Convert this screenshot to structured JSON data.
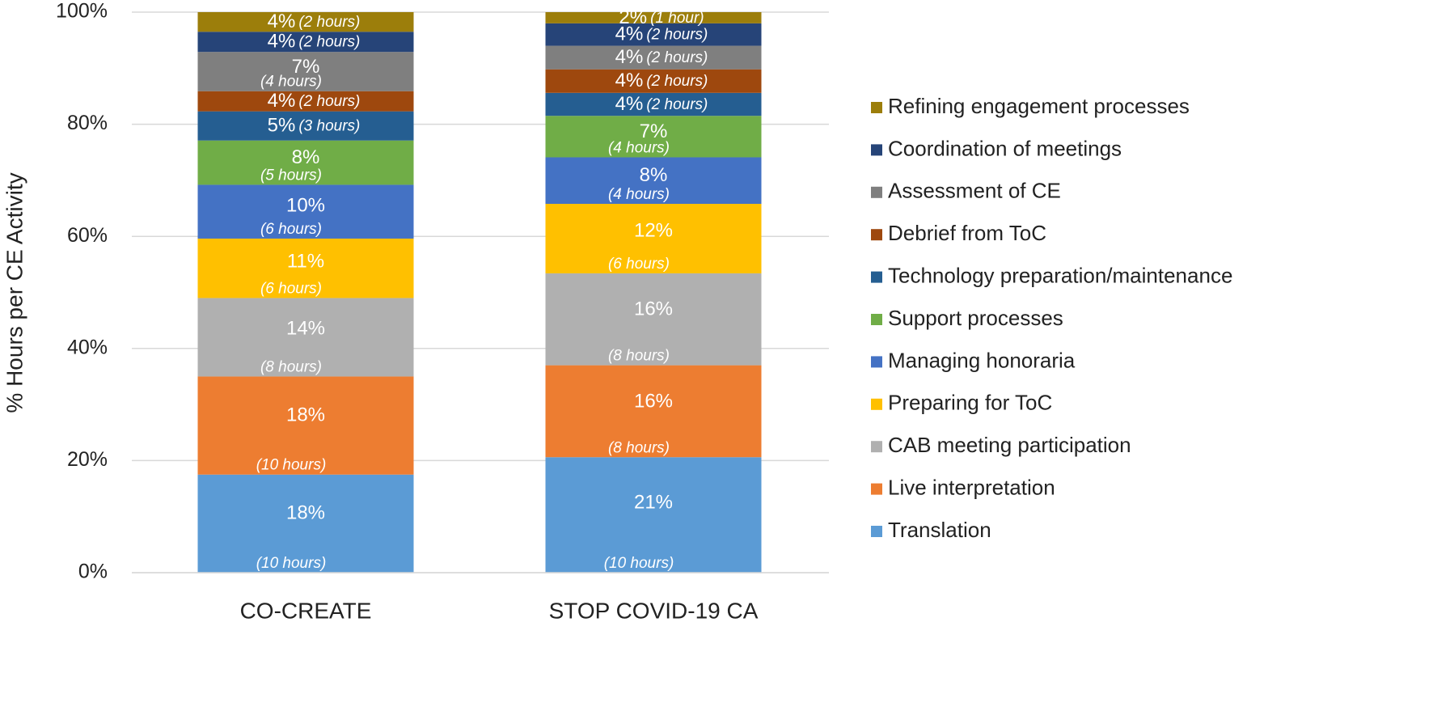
{
  "chart_data": {
    "type": "stacked_bar",
    "y_label": "% Hours per CE Activity",
    "categories": [
      "CO-CREATE",
      "STOP COVID-19 CA"
    ],
    "ylim": [
      0,
      100
    ],
    "yticks": [
      {
        "value": 0,
        "label": "0%"
      },
      {
        "value": 20,
        "label": "20%"
      },
      {
        "value": 40,
        "label": "40%"
      },
      {
        "value": 60,
        "label": "60%"
      },
      {
        "value": 80,
        "label": "80%"
      },
      {
        "value": 100,
        "label": "100%"
      }
    ],
    "grid": true,
    "legend_position": "right",
    "series": [
      {
        "name": "Translation",
        "color": "#5b9bd5",
        "values": [
          17.5,
          20.6
        ],
        "value_labels": [
          "18%",
          "21%"
        ],
        "hour_labels": [
          "(10 hours)",
          "(10 hours)"
        ]
      },
      {
        "name": "Live interpretation",
        "color": "#ed7d31",
        "values": [
          17.5,
          16.4
        ],
        "value_labels": [
          "18%",
          "16%"
        ],
        "hour_labels": [
          "(10 hours)",
          "(8 hours)"
        ]
      },
      {
        "name": "CAB meeting participation",
        "color": "#b0b0b0",
        "values": [
          14.0,
          16.4
        ],
        "value_labels": [
          "14%",
          "16%"
        ],
        "hour_labels": [
          "(8 hours)",
          "(8 hours)"
        ]
      },
      {
        "name": "Preparing for ToC",
        "color": "#ffc000",
        "values": [
          10.6,
          12.4
        ],
        "value_labels": [
          "11%",
          "12%"
        ],
        "hour_labels": [
          "(6 hours)",
          "(6 hours)"
        ]
      },
      {
        "name": "Managing honoraria",
        "color": "#4472c4",
        "values": [
          9.6,
          8.3
        ],
        "value_labels": [
          "10%",
          "8%"
        ],
        "hour_labels": [
          "(6 hours)",
          "(4 hours)"
        ]
      },
      {
        "name": "Support processes",
        "color": "#70ad47",
        "values": [
          7.9,
          7.4
        ],
        "value_labels": [
          "8%",
          "7%"
        ],
        "hour_labels": [
          "(5 hours)",
          "(4 hours)"
        ]
      },
      {
        "name": "Technology preparation/maintenance",
        "color": "#255e91",
        "values": [
          5.2,
          4.1
        ],
        "value_labels": [
          "5%",
          "4%"
        ],
        "hour_labels": [
          "(3 hours)",
          "(2 hours)"
        ]
      },
      {
        "name": "Debrief from ToC",
        "color": "#9e480e",
        "values": [
          3.6,
          4.2
        ],
        "value_labels": [
          "4%",
          "4%"
        ],
        "hour_labels": [
          "(2 hours)",
          "(2 hours)"
        ]
      },
      {
        "name": "Assessment of CE",
        "color": "#7f7f7f",
        "values": [
          7.0,
          4.2
        ],
        "value_labels": [
          "7%",
          "4%"
        ],
        "hour_labels": [
          "(4 hours)",
          "(2 hours)"
        ]
      },
      {
        "name": "Coordination of meetings",
        "color": "#264478",
        "values": [
          3.6,
          4.0
        ],
        "value_labels": [
          "4%",
          "4%"
        ],
        "hour_labels": [
          "(2 hours)",
          "(2 hours)"
        ]
      },
      {
        "name": "Refining engagement processes",
        "color": "#9c7e0b",
        "values": [
          3.5,
          2.0
        ],
        "value_labels": [
          "4%",
          "2%"
        ],
        "hour_labels": [
          "(2 hours)",
          "(1 hour)"
        ]
      }
    ]
  }
}
